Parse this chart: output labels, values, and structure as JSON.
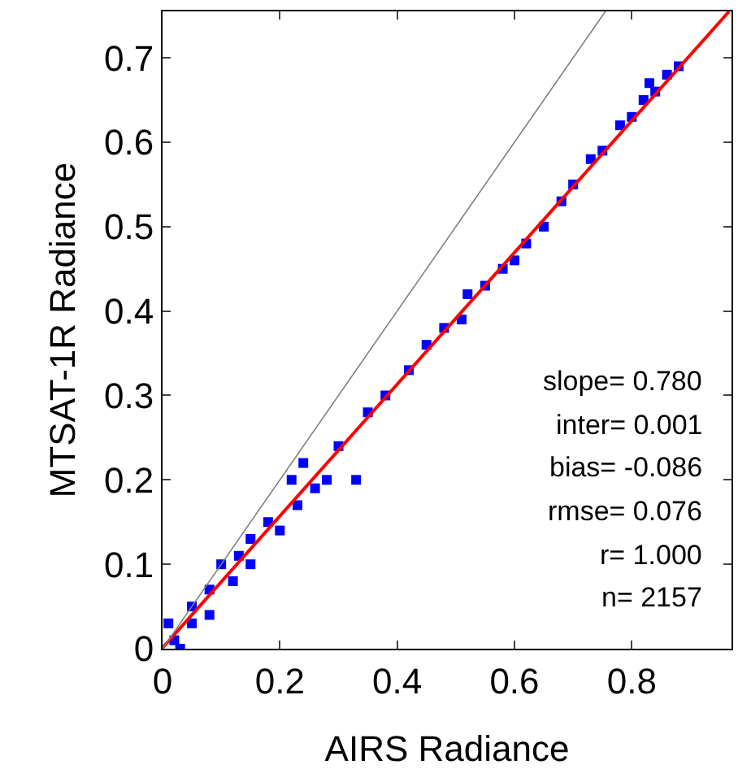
{
  "chart_data": {
    "type": "scatter",
    "xlabel": "AIRS Radiance",
    "ylabel": "MTSAT-1R Radiance",
    "xlim": [
      0,
      0.97
    ],
    "ylim": [
      0,
      0.755
    ],
    "xticks": [
      0,
      0.2,
      0.4,
      0.6,
      0.8
    ],
    "yticks": [
      0,
      0.1,
      0.2,
      0.3,
      0.4,
      0.5,
      0.6,
      0.7
    ],
    "grid": false,
    "series": [
      {
        "marker": "square",
        "color": "#0000ff",
        "x": [
          0.01,
          0.02,
          0.03,
          0.05,
          0.05,
          0.08,
          0.08,
          0.1,
          0.12,
          0.13,
          0.15,
          0.15,
          0.18,
          0.2,
          0.22,
          0.24,
          0.23,
          0.26,
          0.28,
          0.33,
          0.3,
          0.35,
          0.38,
          0.42,
          0.45,
          0.48,
          0.51,
          0.52,
          0.55,
          0.58,
          0.6,
          0.62,
          0.65,
          0.68,
          0.7,
          0.73,
          0.75,
          0.78,
          0.8,
          0.82,
          0.83,
          0.84,
          0.86,
          0.88
        ],
        "values": [
          0.03,
          0.01,
          0.0,
          0.03,
          0.05,
          0.07,
          0.04,
          0.1,
          0.08,
          0.11,
          0.13,
          0.1,
          0.15,
          0.14,
          0.2,
          0.22,
          0.17,
          0.19,
          0.2,
          0.2,
          0.24,
          0.28,
          0.3,
          0.33,
          0.36,
          0.38,
          0.39,
          0.42,
          0.43,
          0.45,
          0.46,
          0.48,
          0.5,
          0.53,
          0.55,
          0.58,
          0.59,
          0.62,
          0.63,
          0.65,
          0.67,
          0.66,
          0.68,
          0.69
        ]
      },
      {
        "type": "line",
        "marker": "none",
        "color": "#ff0000",
        "x": [
          0,
          0.966
        ],
        "values": [
          0.001,
          0.755
        ]
      },
      {
        "type": "line",
        "marker": "none",
        "color": "#808080",
        "x": [
          0,
          0.755
        ],
        "values": [
          0,
          0.755
        ]
      }
    ],
    "annotations": [
      "slope= 0.780",
      "inter= 0.001",
      "bias= -0.086",
      "rmse= 0.076",
      "r= 1.000",
      "n= 2157"
    ]
  }
}
